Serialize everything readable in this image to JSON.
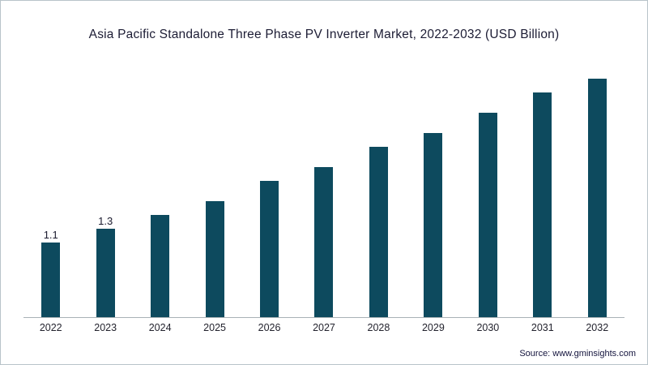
{
  "chart_data": {
    "type": "bar",
    "title": "Asia Pacific Standalone Three Phase PV Inverter Market, 2022-2032 (USD Billion)",
    "categories": [
      "2022",
      "2023",
      "2024",
      "2025",
      "2026",
      "2027",
      "2028",
      "2029",
      "2030",
      "2031",
      "2032"
    ],
    "values": [
      1.1,
      1.3,
      1.5,
      1.7,
      2.0,
      2.2,
      2.5,
      2.7,
      3.0,
      3.3,
      3.5
    ],
    "data_labels": [
      "1.1",
      "1.3",
      "",
      "",
      "",
      "",
      "",
      "",
      "",
      "",
      ""
    ],
    "xlabel": "",
    "ylabel": "",
    "ylim": [
      0,
      3.6
    ],
    "grid": false,
    "legend": false,
    "bar_color": "#0d4a5e",
    "axis_line_color": "#a9b2b6"
  },
  "footer": {
    "source": "Source: www.gminsights.com"
  }
}
